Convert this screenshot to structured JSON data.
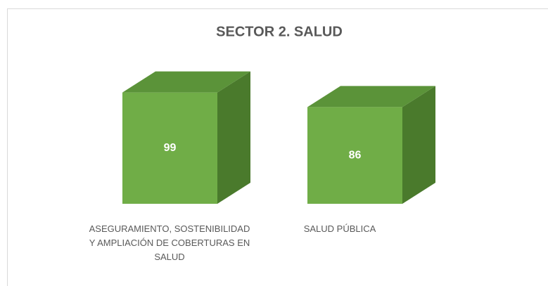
{
  "chart_data": {
    "type": "bar3d",
    "title": "SECTOR 2. SALUD",
    "categories": [
      "ASEGURAMIENTO, SOSTENIBILIDAD Y AMPLIACIÓN DE COBERTURAS EN SALUD",
      "SALUD PÚBLICA"
    ],
    "values": [
      99,
      86
    ],
    "color": "#70ad47",
    "ylim": [
      0,
      100
    ]
  }
}
